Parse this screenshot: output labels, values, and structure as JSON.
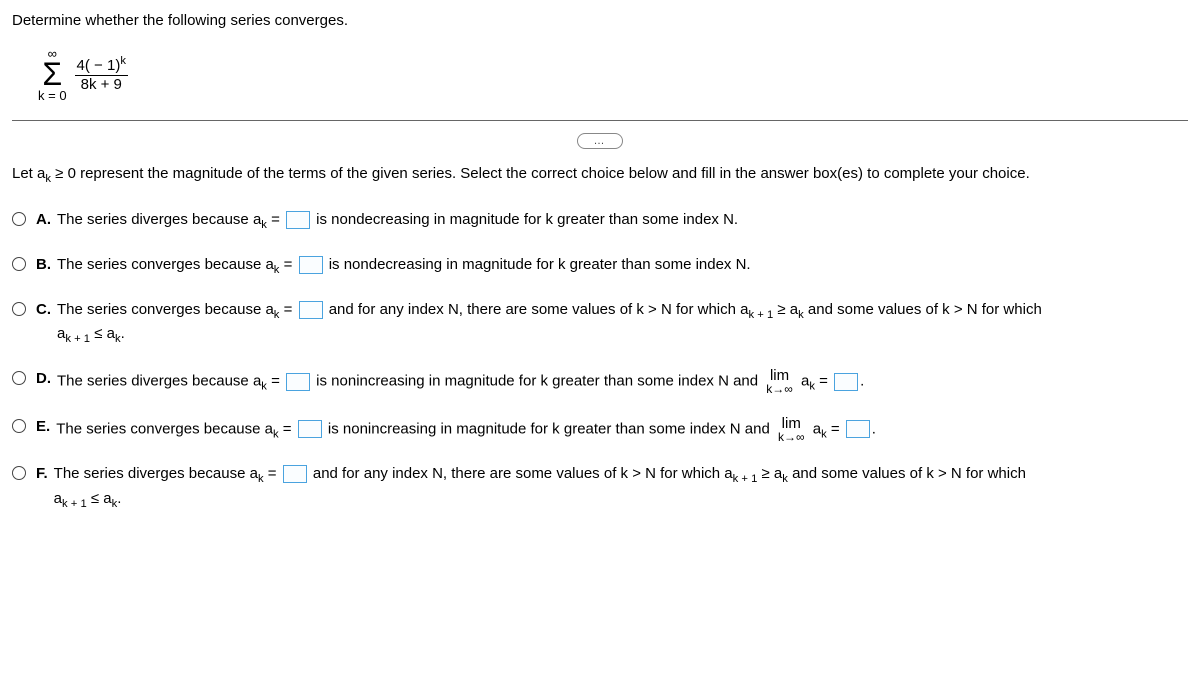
{
  "question": "Determine whether the following series converges.",
  "series": {
    "upper": "∞",
    "lower": "k = 0",
    "numerator": "4( − 1)",
    "num_sup": "k",
    "denominator": "8k + 9"
  },
  "ellipsis": "…",
  "instruction_pre": "Let a",
  "instruction_sub": "k",
  "instruction_post": " ≥ 0 represent the magnitude of the terms of the given series. Select the correct choice below and fill in the answer box(es) to complete your choice.",
  "choices": {
    "A": {
      "lead": "The series diverges because a",
      "t1": " is nondecreasing in magnitude for k greater than some index N."
    },
    "B": {
      "lead": "The series converges because a",
      "t1": " is nondecreasing in magnitude for k greater than some index N."
    },
    "C": {
      "lead": "The series converges because a",
      "t1": " and for any index N, there are some values of k > N for which a",
      "t2": " ≥ a",
      "t3": " and some values of k > N for which",
      "line2a": "a",
      "line2b": " ≤ a",
      "line2c": "."
    },
    "D": {
      "lead": "The series diverges because a",
      "t1": " is nonincreasing in magnitude for k greater than some index N and ",
      "lim_var": "lim",
      "lim_cond": "k→∞",
      "t2": " a",
      "t3": " = ",
      "t4": "."
    },
    "E": {
      "lead": "The series converges because a",
      "t1": " is nonincreasing in magnitude for k greater than some index N and ",
      "lim_var": "lim",
      "lim_cond": "k→∞",
      "t2": " a",
      "t3": " = ",
      "t4": "."
    },
    "F": {
      "lead": "The series diverges because a",
      "t1": " and for any index N, there are some values of k > N for which a",
      "t2": " ≥ a",
      "t3": " and some values of k > N for which",
      "line2a": "a",
      "line2b": " ≤ a",
      "line2c": "."
    }
  },
  "subs": {
    "k": "k",
    "k1": "k + 1"
  },
  "eq": " = ",
  "letters": {
    "A": "A.",
    "B": "B.",
    "C": "C.",
    "D": "D.",
    "E": "E.",
    "F": "F."
  },
  "colors": {
    "blank_border": "#4aa3df"
  }
}
